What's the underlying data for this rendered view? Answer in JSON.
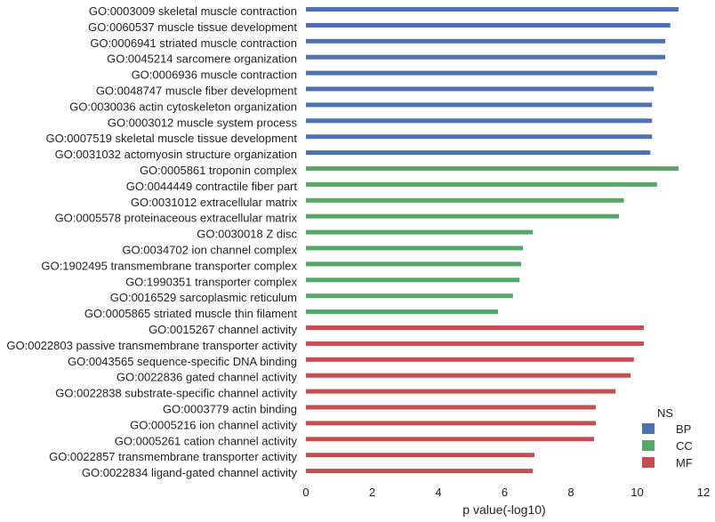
{
  "chart_data": {
    "type": "bar",
    "orientation": "horizontal",
    "xlabel": "p value(-log10)",
    "ylabel": "",
    "xlim": [
      0,
      12
    ],
    "xticks": [
      0,
      2,
      4,
      6,
      8,
      10,
      12
    ],
    "grid": false,
    "legend": {
      "title": "NS",
      "placement": "bottom-right",
      "entries": [
        {
          "name": "BP",
          "color": "#4c72b0"
        },
        {
          "name": "CC",
          "color": "#55a868"
        },
        {
          "name": "MF",
          "color": "#c44e52"
        }
      ]
    },
    "series": [
      {
        "name": "BP",
        "color": "#4c72b0",
        "items": [
          {
            "label": "GO:0003009 skeletal muscle contraction",
            "value": 11.25
          },
          {
            "label": "GO:0060537 muscle tissue development",
            "value": 11.0
          },
          {
            "label": "GO:0006941 striated muscle contraction",
            "value": 10.85
          },
          {
            "label": "GO:0045214 sarcomere organization",
            "value": 10.85
          },
          {
            "label": "GO:0006936 muscle contraction",
            "value": 10.6
          },
          {
            "label": "GO:0048747 muscle fiber development",
            "value": 10.5
          },
          {
            "label": "GO:0030036 actin cytoskeleton organization",
            "value": 10.45
          },
          {
            "label": "GO:0003012 muscle system process",
            "value": 10.45
          },
          {
            "label": "GO:0007519 skeletal muscle tissue development",
            "value": 10.45
          },
          {
            "label": "GO:0031032 actomyosin structure organization",
            "value": 10.4
          }
        ]
      },
      {
        "name": "CC",
        "color": "#55a868",
        "items": [
          {
            "label": "GO:0005861 troponin complex",
            "value": 11.25
          },
          {
            "label": "GO:0044449 contractile fiber part",
            "value": 10.6
          },
          {
            "label": "GO:0031012 extracellular matrix",
            "value": 9.6
          },
          {
            "label": "GO:0005578 proteinaceous extracellular matrix",
            "value": 9.45
          },
          {
            "label": "GO:0030018 Z disc",
            "value": 6.85
          },
          {
            "label": "GO:0034702 ion channel complex",
            "value": 6.55
          },
          {
            "label": "GO:1902495 transmembrane transporter complex",
            "value": 6.5
          },
          {
            "label": "GO:1990351 transporter complex",
            "value": 6.45
          },
          {
            "label": "GO:0016529 sarcoplasmic reticulum",
            "value": 6.25
          },
          {
            "label": "GO:0005865 striated muscle thin filament",
            "value": 5.8
          }
        ]
      },
      {
        "name": "MF",
        "color": "#c44e52",
        "items": [
          {
            "label": "GO:0015267 channel activity",
            "value": 10.2
          },
          {
            "label": "GO:0022803 passive transmembrane transporter activity",
            "value": 10.2
          },
          {
            "label": "GO:0043565 sequence-specific DNA binding",
            "value": 9.9
          },
          {
            "label": "GO:0022836 gated channel activity",
            "value": 9.8
          },
          {
            "label": "GO:0022838 substrate-specific channel activity",
            "value": 9.35
          },
          {
            "label": "GO:0003779 actin binding",
            "value": 8.75
          },
          {
            "label": "GO:0005216 ion channel activity",
            "value": 8.75
          },
          {
            "label": "GO:0005261 cation channel activity",
            "value": 8.7
          },
          {
            "label": "GO:0022857 transmembrane transporter activity",
            "value": 6.9
          },
          {
            "label": "GO:0022834 ligand-gated channel activity",
            "value": 6.85
          }
        ]
      }
    ]
  }
}
